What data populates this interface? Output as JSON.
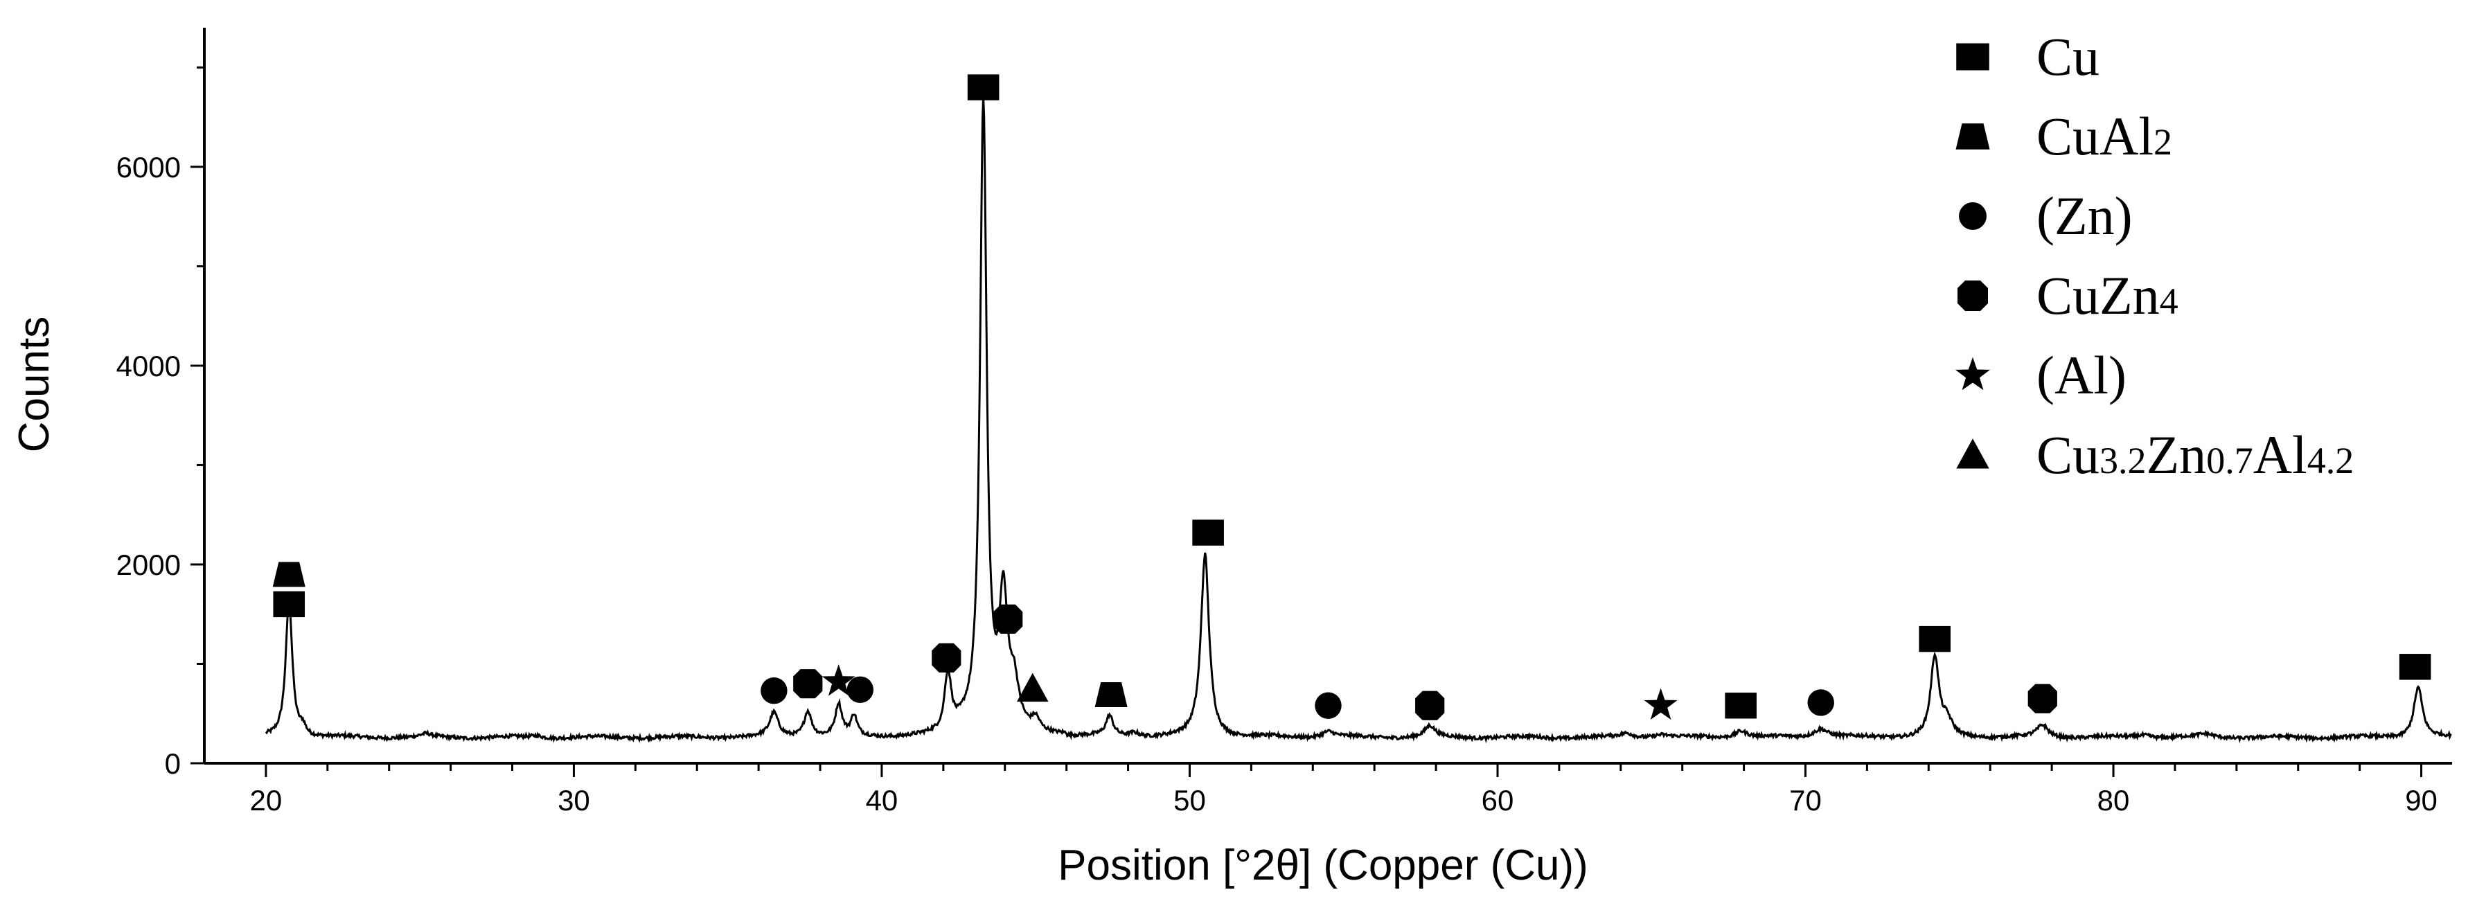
{
  "chart_data": {
    "type": "line",
    "title": "",
    "xlabel": "Position [°2θ] (Copper (Cu))",
    "ylabel": "Counts",
    "xlim": [
      18,
      91
    ],
    "ylim": [
      0,
      7400
    ],
    "xticks": [
      "20",
      "30",
      "40",
      "50",
      "60",
      "70",
      "80",
      "90"
    ],
    "yticks": [
      "0",
      "2000",
      "4000",
      "6000"
    ],
    "grid": false,
    "legend_position": "top-right",
    "baseline": 260,
    "peaks": [
      {
        "x": 20.75,
        "y": 1380,
        "w": 0.13
      },
      {
        "x": 21.2,
        "y": 90,
        "w": 0.12
      },
      {
        "x": 25.2,
        "y": 30,
        "w": 0.2
      },
      {
        "x": 28.8,
        "y": 20,
        "w": 0.2
      },
      {
        "x": 36.5,
        "y": 240,
        "w": 0.17
      },
      {
        "x": 37.6,
        "y": 260,
        "w": 0.15
      },
      {
        "x": 38.6,
        "y": 320,
        "w": 0.13
      },
      {
        "x": 39.1,
        "y": 200,
        "w": 0.12
      },
      {
        "x": 42.15,
        "y": 560,
        "w": 0.13
      },
      {
        "x": 42.7,
        "y": 60,
        "w": 0.3
      },
      {
        "x": 43.3,
        "y": 6330,
        "w": 0.13
      },
      {
        "x": 43.95,
        "y": 1300,
        "w": 0.16
      },
      {
        "x": 44.3,
        "y": 420,
        "w": 0.18
      },
      {
        "x": 45.0,
        "y": 120,
        "w": 0.15
      },
      {
        "x": 47.4,
        "y": 200,
        "w": 0.14
      },
      {
        "x": 48.2,
        "y": 40,
        "w": 0.2
      },
      {
        "x": 50.5,
        "y": 1840,
        "w": 0.16
      },
      {
        "x": 54.5,
        "y": 60,
        "w": 0.25
      },
      {
        "x": 57.8,
        "y": 110,
        "w": 0.2
      },
      {
        "x": 64.2,
        "y": 40,
        "w": 0.25
      },
      {
        "x": 65.3,
        "y": 30,
        "w": 0.3
      },
      {
        "x": 67.9,
        "y": 70,
        "w": 0.25
      },
      {
        "x": 70.5,
        "y": 90,
        "w": 0.3
      },
      {
        "x": 74.2,
        "y": 800,
        "w": 0.16
      },
      {
        "x": 74.6,
        "y": 150,
        "w": 0.2
      },
      {
        "x": 77.7,
        "y": 120,
        "w": 0.22
      },
      {
        "x": 81.0,
        "y": 30,
        "w": 0.3
      },
      {
        "x": 83.0,
        "y": 30,
        "w": 0.3
      },
      {
        "x": 89.9,
        "y": 510,
        "w": 0.17
      }
    ],
    "series": [
      {
        "name": "Cu",
        "marker": "square",
        "points": [
          [
            20.75,
            1600
          ],
          [
            43.3,
            6800
          ],
          [
            50.6,
            2320
          ],
          [
            67.9,
            580
          ],
          [
            74.2,
            1250
          ],
          [
            89.8,
            970
          ]
        ]
      },
      {
        "name": "CuAl",
        "name_sub": "2",
        "marker": "trapezoid",
        "points": [
          [
            20.75,
            1900
          ],
          [
            47.45,
            690
          ]
        ]
      },
      {
        "name": "(Zn)",
        "marker": "circle",
        "points": [
          [
            36.5,
            730
          ],
          [
            39.3,
            740
          ],
          [
            54.5,
            580
          ],
          [
            70.5,
            610
          ]
        ]
      },
      {
        "name": "CuZn",
        "name_sub": "4",
        "marker": "octagon",
        "points": [
          [
            37.6,
            800
          ],
          [
            42.1,
            1060
          ],
          [
            44.1,
            1450
          ],
          [
            57.8,
            580
          ],
          [
            77.7,
            650
          ]
        ]
      },
      {
        "name": "(Al)",
        "marker": "star",
        "points": [
          [
            38.6,
            820
          ],
          [
            65.3,
            580
          ]
        ]
      },
      {
        "name_parts": [
          "Cu",
          "3.2",
          "Zn",
          "0.7",
          "Al",
          "4.2"
        ],
        "marker": "triangle",
        "points": [
          [
            44.9,
            750
          ]
        ]
      }
    ]
  },
  "colors": {
    "line": "#000000",
    "marker": "#000000",
    "background": "#ffffff"
  }
}
